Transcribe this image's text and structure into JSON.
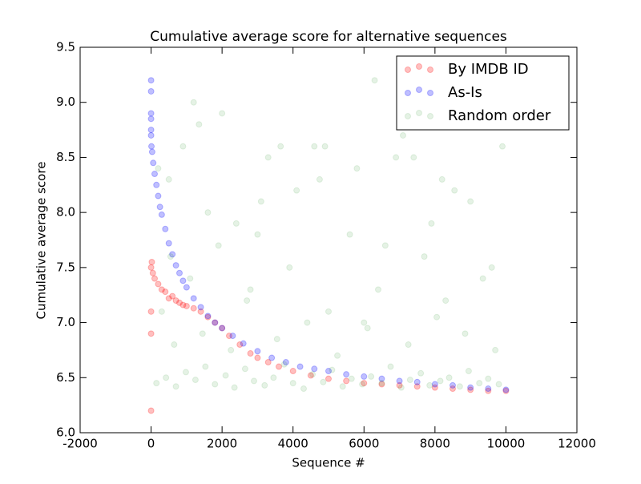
{
  "chart_data": {
    "type": "scatter",
    "title": "Cumulative average score for alternative sequences",
    "x_label": "Sequence #",
    "y_label": "Cumulative average score",
    "xlim": [
      -2000,
      12000
    ],
    "ylim": [
      6.0,
      9.5
    ],
    "xticks": [
      -2000,
      0,
      2000,
      4000,
      6000,
      8000,
      10000,
      12000
    ],
    "yticks": [
      {
        "value": 6.0,
        "label": "6.0"
      },
      {
        "value": 6.5,
        "label": "6.5"
      },
      {
        "value": 7.0,
        "label": "7.0"
      },
      {
        "value": 7.5,
        "label": "7.5"
      },
      {
        "value": 8.0,
        "label": "8.0"
      },
      {
        "value": 8.5,
        "label": "8.5"
      },
      {
        "value": 9.0,
        "label": "9.0"
      },
      {
        "value": 9.5,
        "label": "9.5"
      }
    ],
    "legend": "upper right",
    "series": [
      {
        "name": "By IMDB ID",
        "color": "#ff0000",
        "alpha": 0.25,
        "x": [
          0,
          0,
          0,
          0,
          20,
          50,
          100,
          200,
          300,
          400,
          500,
          600,
          700,
          800,
          900,
          1000,
          1200,
          1400,
          1600,
          1800,
          2000,
          2200,
          2500,
          2800,
          3000,
          3300,
          3600,
          4000,
          4500,
          5000,
          5500,
          6000,
          6500,
          7000,
          7500,
          8000,
          8500,
          9000,
          9500,
          10000
        ],
        "values": [
          7.5,
          6.2,
          6.9,
          7.1,
          7.55,
          7.45,
          7.4,
          7.35,
          7.3,
          7.28,
          7.22,
          7.24,
          7.2,
          7.18,
          7.16,
          7.15,
          7.13,
          7.1,
          7.05,
          7.0,
          6.95,
          6.88,
          6.8,
          6.72,
          6.68,
          6.64,
          6.6,
          6.56,
          6.52,
          6.49,
          6.47,
          6.45,
          6.44,
          6.43,
          6.42,
          6.41,
          6.4,
          6.39,
          6.38,
          6.38
        ]
      },
      {
        "name": "As-Is",
        "color": "#0000ff",
        "alpha": 0.25,
        "x": [
          0,
          0,
          0,
          0,
          0,
          0,
          10,
          30,
          60,
          100,
          150,
          200,
          250,
          300,
          400,
          500,
          600,
          700,
          800,
          900,
          1000,
          1200,
          1400,
          1600,
          1800,
          2000,
          2300,
          2600,
          3000,
          3400,
          3800,
          4200,
          4600,
          5000,
          5500,
          6000,
          6500,
          7000,
          7500,
          8000,
          8500,
          9000,
          9500,
          10000
        ],
        "values": [
          9.2,
          9.1,
          8.9,
          8.85,
          8.75,
          8.7,
          8.6,
          8.55,
          8.45,
          8.35,
          8.25,
          8.15,
          8.05,
          7.98,
          7.85,
          7.72,
          7.62,
          7.52,
          7.45,
          7.38,
          7.32,
          7.22,
          7.14,
          7.06,
          7.0,
          6.95,
          6.88,
          6.81,
          6.74,
          6.68,
          6.64,
          6.6,
          6.58,
          6.56,
          6.53,
          6.51,
          6.49,
          6.47,
          6.46,
          6.44,
          6.43,
          6.41,
          6.4,
          6.39
        ]
      },
      {
        "name": "Random order",
        "color": "#008000",
        "alpha": 0.1,
        "x": [
          150,
          420,
          700,
          980,
          1250,
          1530,
          1800,
          2100,
          2350,
          2650,
          2900,
          3200,
          3450,
          3750,
          4000,
          4300,
          4550,
          4850,
          5100,
          5400,
          5650,
          5950,
          6200,
          6500,
          6750,
          7050,
          7300,
          7600,
          7850,
          8150,
          8400,
          8700,
          8950,
          9250,
          9500,
          9800,
          300,
          650,
          1100,
          1450,
          1900,
          2250,
          2700,
          3100,
          3550,
          3900,
          4400,
          4750,
          5250,
          5600,
          6100,
          6400,
          6900,
          7250,
          7700,
          8050,
          8550,
          8850,
          9350,
          9700,
          200,
          900,
          1600,
          2400,
          3300,
          4100,
          4900,
          5800,
          6600,
          7400,
          8200,
          9000,
          9900,
          550,
          1350,
          2800,
          3650,
          5000,
          6300,
          7900,
          9600,
          1200,
          2000,
          3000,
          4600,
          6000,
          7100,
          8300,
          9400,
          500
        ],
        "values": [
          6.45,
          6.5,
          6.42,
          6.55,
          6.48,
          6.6,
          6.44,
          6.52,
          6.41,
          6.58,
          6.47,
          6.43,
          6.5,
          6.62,
          6.45,
          6.4,
          6.53,
          6.46,
          6.57,
          6.42,
          6.49,
          6.44,
          6.51,
          6.45,
          6.6,
          6.41,
          6.48,
          6.54,
          6.43,
          6.47,
          6.5,
          6.42,
          6.56,
          6.45,
          6.49,
          6.44,
          7.1,
          6.8,
          7.4,
          6.9,
          7.7,
          6.75,
          7.2,
          8.1,
          6.85,
          7.5,
          7.0,
          8.3,
          6.7,
          7.8,
          6.95,
          7.3,
          8.5,
          6.8,
          7.6,
          7.05,
          8.2,
          6.9,
          7.4,
          6.75,
          8.4,
          8.6,
          8.0,
          7.9,
          8.5,
          8.2,
          8.6,
          8.4,
          7.7,
          8.5,
          8.3,
          8.1,
          8.6,
          7.6,
          8.8,
          7.3,
          8.6,
          7.1,
          9.2,
          7.9,
          7.5,
          9.0,
          8.9,
          7.8,
          8.6,
          7.0,
          8.7,
          7.2,
          8.8,
          8.3
        ]
      }
    ]
  }
}
